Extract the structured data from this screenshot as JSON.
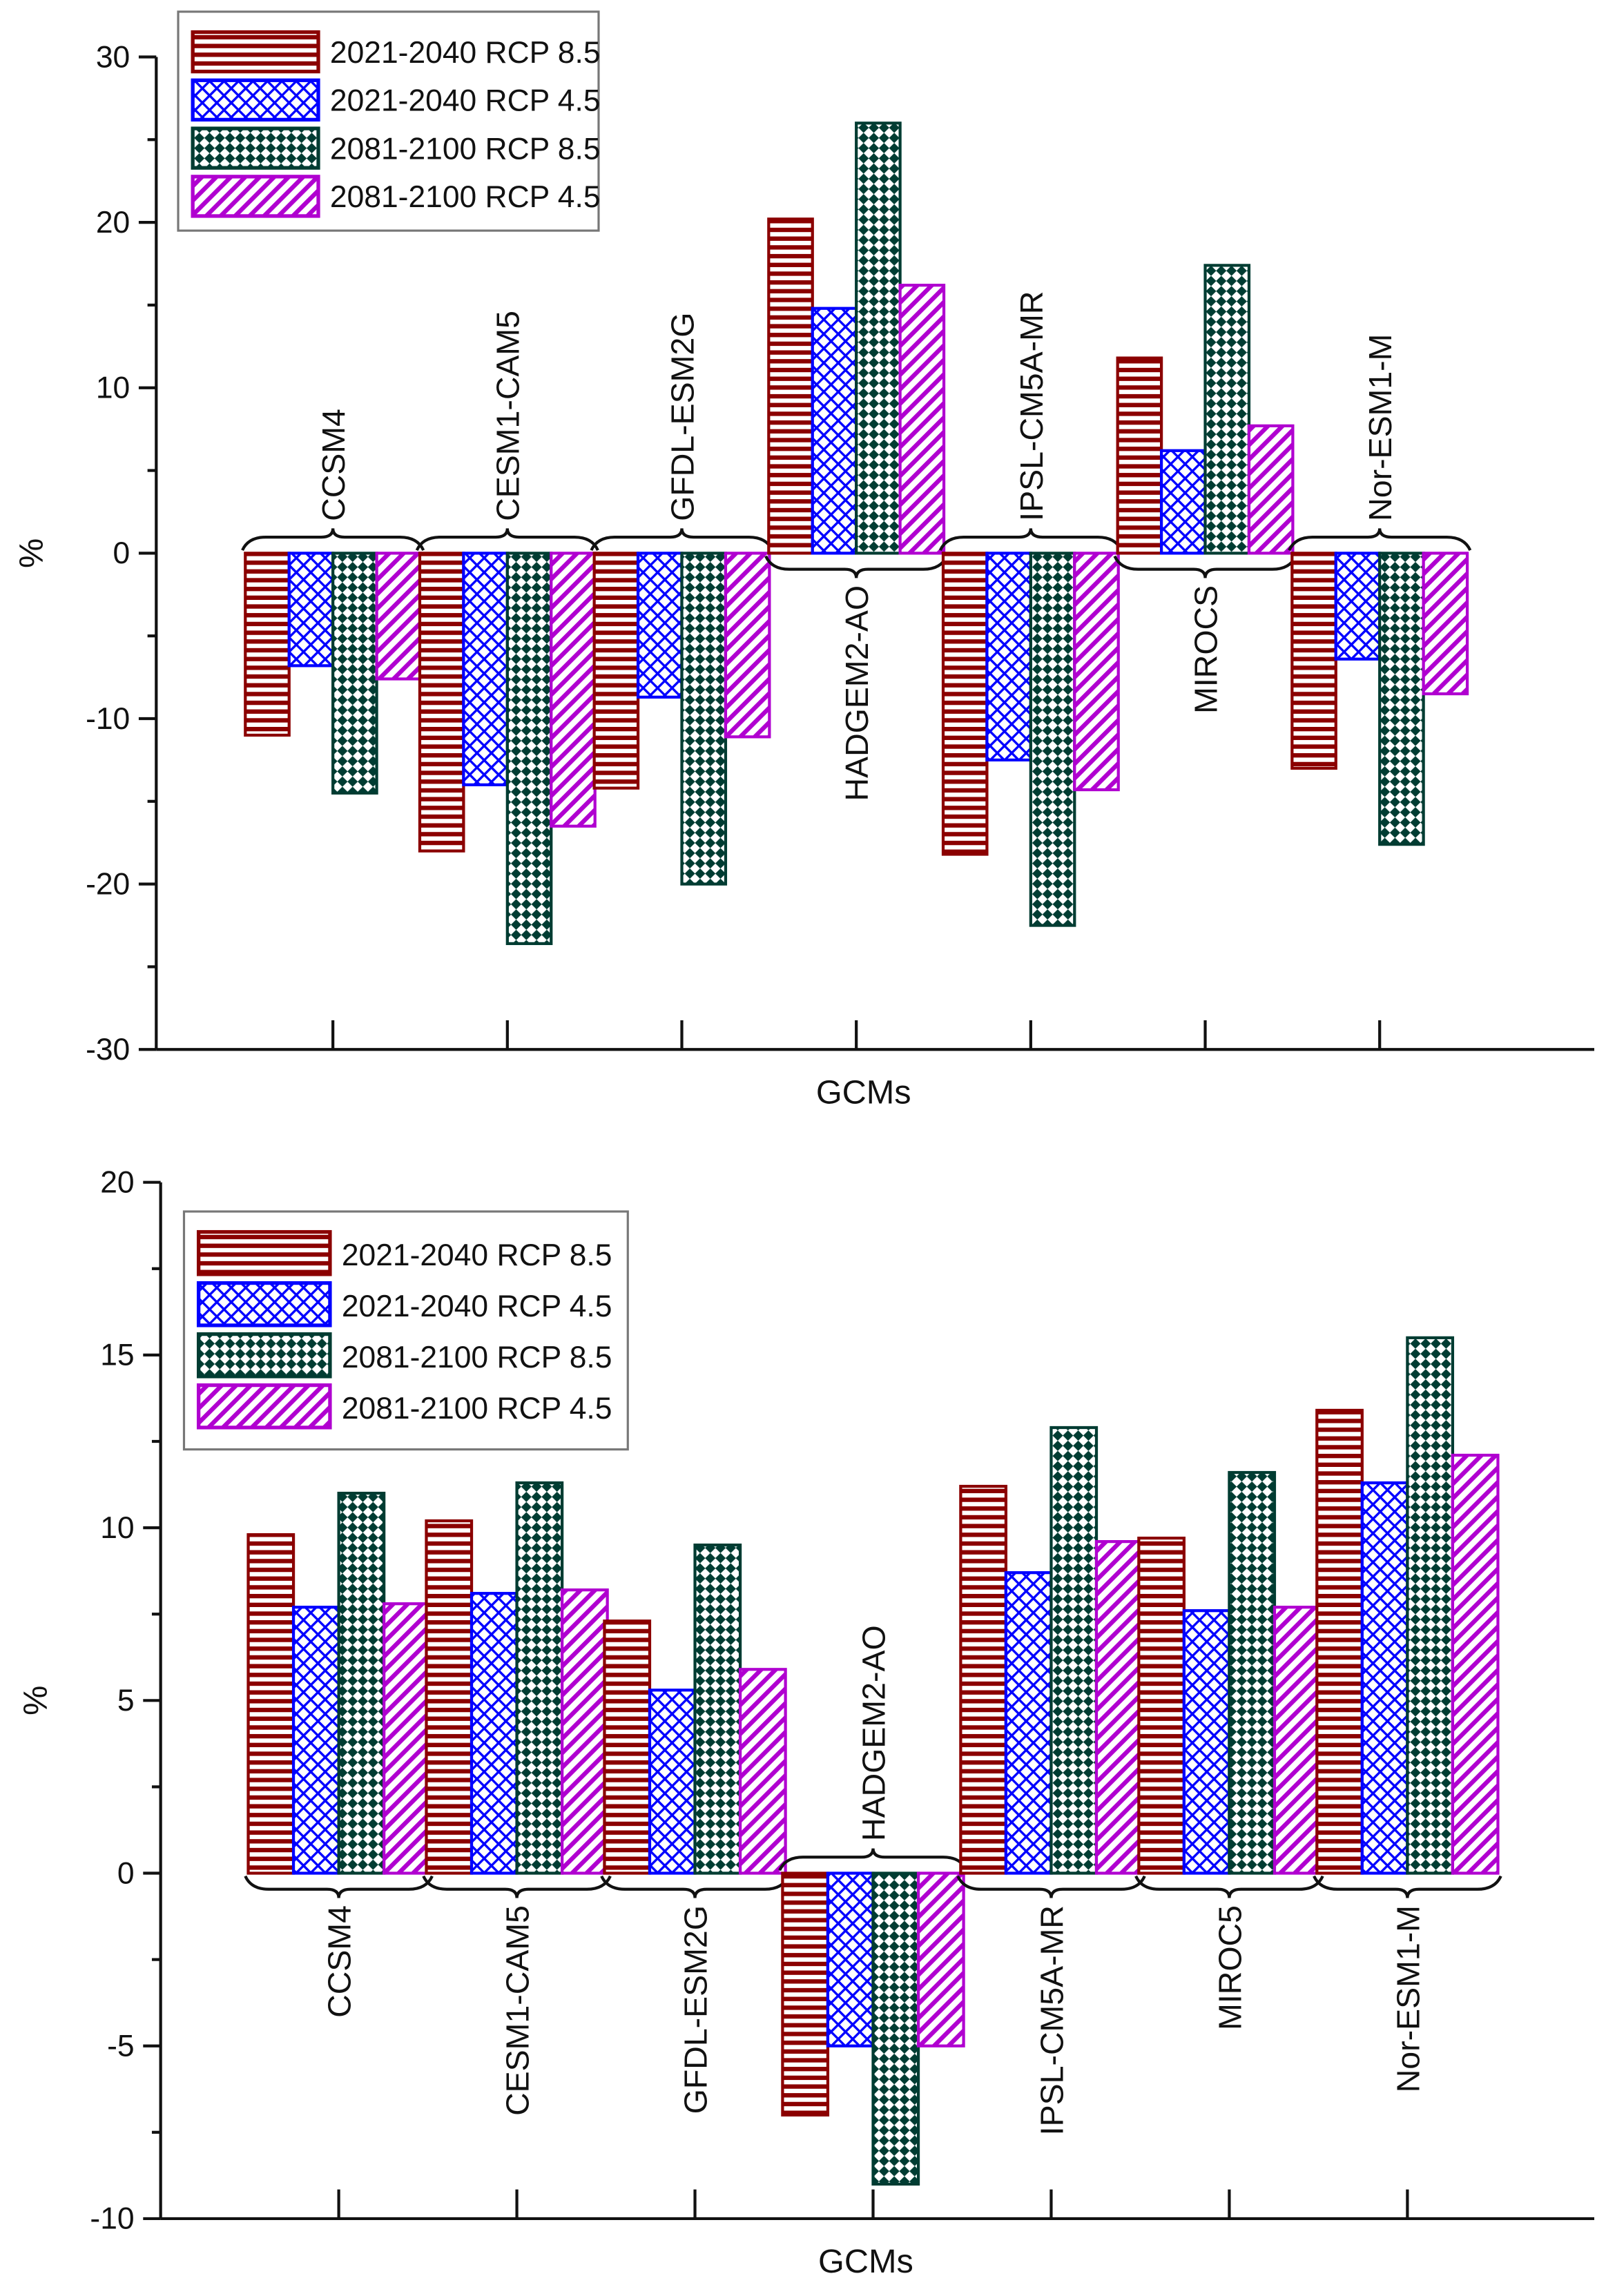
{
  "colors": {
    "s1": "#8b0000",
    "s2": "#0000ff",
    "s3": "#003c32",
    "s4": "#b000d0"
  },
  "legend_labels": [
    "2021-2040 RCP 8.5",
    "2021-2040 RCP 4.5",
    "2081-2100 RCP 8.5",
    "2081-2100 RCP 4.5"
  ],
  "chart_data": [
    {
      "type": "bar",
      "xlabel": "GCMs",
      "ylabel": "%",
      "ylim": [
        -30,
        30
      ],
      "yticks": [
        30,
        20,
        10,
        0,
        -10,
        -20,
        -30
      ],
      "legend_position": "top-left",
      "categories": [
        "CCSM4",
        "CESM1-CAM5",
        "GFDL-ESM2G",
        "HADGEM2-AO",
        "IPSL-CM5A-MR",
        "MIROCS",
        "Nor-ESM1-M"
      ],
      "series": [
        {
          "name": "2021-2040 RCP 8.5",
          "values": [
            -11.0,
            -18.0,
            -14.2,
            20.2,
            -18.2,
            11.8,
            -13.0
          ]
        },
        {
          "name": "2021-2040 RCP 4.5",
          "values": [
            -6.8,
            -14.0,
            -8.7,
            14.8,
            -12.5,
            6.2,
            -6.4
          ]
        },
        {
          "name": "2081-2100 RCP 8.5",
          "values": [
            -14.5,
            -23.6,
            -20.0,
            26.0,
            -22.5,
            17.4,
            -17.6
          ]
        },
        {
          "name": "2081-2100 RCP 4.5",
          "values": [
            -7.6,
            -16.5,
            -11.1,
            16.2,
            -14.3,
            7.7,
            -8.5
          ]
        }
      ]
    },
    {
      "type": "bar",
      "xlabel": "GCMs",
      "ylabel": "%",
      "ylim": [
        -10,
        20
      ],
      "yticks": [
        20,
        15,
        10,
        5,
        0,
        -5,
        -10
      ],
      "legend_position": "top-left",
      "categories": [
        "CCSM4",
        "CESM1-CAM5",
        "GFDL-ESM2G",
        "HADGEM2-AO",
        "IPSL-CM5A-MR",
        "MIROC5",
        "Nor-ESM1-M"
      ],
      "series": [
        {
          "name": "2021-2040 RCP 8.5",
          "values": [
            9.8,
            10.2,
            7.3,
            -7.0,
            11.2,
            9.7,
            13.4
          ]
        },
        {
          "name": "2021-2040 RCP 4.5",
          "values": [
            7.7,
            8.1,
            5.3,
            -5.0,
            8.7,
            7.6,
            11.3
          ]
        },
        {
          "name": "2081-2100 RCP 8.5",
          "values": [
            11.0,
            11.3,
            9.5,
            -9.0,
            12.9,
            11.6,
            15.5
          ]
        },
        {
          "name": "2081-2100 RCP 4.5",
          "values": [
            7.8,
            8.2,
            5.9,
            -5.0,
            9.6,
            7.7,
            12.1
          ]
        }
      ]
    }
  ]
}
